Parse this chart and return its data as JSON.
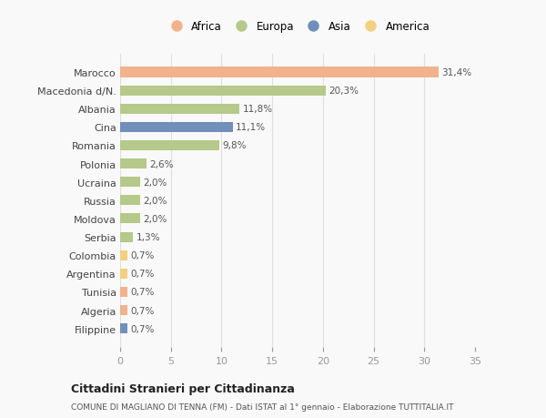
{
  "countries": [
    "Marocco",
    "Macedonia d/N.",
    "Albania",
    "Cina",
    "Romania",
    "Polonia",
    "Ucraina",
    "Russia",
    "Moldova",
    "Serbia",
    "Colombia",
    "Argentina",
    "Tunisia",
    "Algeria",
    "Filippine"
  ],
  "values": [
    31.4,
    20.3,
    11.8,
    11.1,
    9.8,
    2.6,
    2.0,
    2.0,
    2.0,
    1.3,
    0.7,
    0.7,
    0.7,
    0.7,
    0.7
  ],
  "labels": [
    "31,4%",
    "20,3%",
    "11,8%",
    "11,1%",
    "9,8%",
    "2,6%",
    "2,0%",
    "2,0%",
    "2,0%",
    "1,3%",
    "0,7%",
    "0,7%",
    "0,7%",
    "0,7%",
    "0,7%"
  ],
  "continents": [
    "Africa",
    "Europa",
    "Europa",
    "Asia",
    "Europa",
    "Europa",
    "Europa",
    "Europa",
    "Europa",
    "Europa",
    "America",
    "America",
    "Africa",
    "Africa",
    "Asia"
  ],
  "colors": {
    "Africa": "#F2B28C",
    "Europa": "#B5C98A",
    "Asia": "#7090BB",
    "America": "#F2D080"
  },
  "legend_order": [
    "Africa",
    "Europa",
    "Asia",
    "America"
  ],
  "xlim": [
    0,
    35
  ],
  "xticks": [
    0,
    5,
    10,
    15,
    20,
    25,
    30,
    35
  ],
  "title": "Cittadini Stranieri per Cittadinanza",
  "subtitle": "COMUNE DI MAGLIANO DI TENNA (FM) - Dati ISTAT al 1° gennaio - Elaborazione TUTTITALIA.IT",
  "background_color": "#f9f9f9",
  "grid_color": "#e0e0e0",
  "bar_height": 0.55
}
